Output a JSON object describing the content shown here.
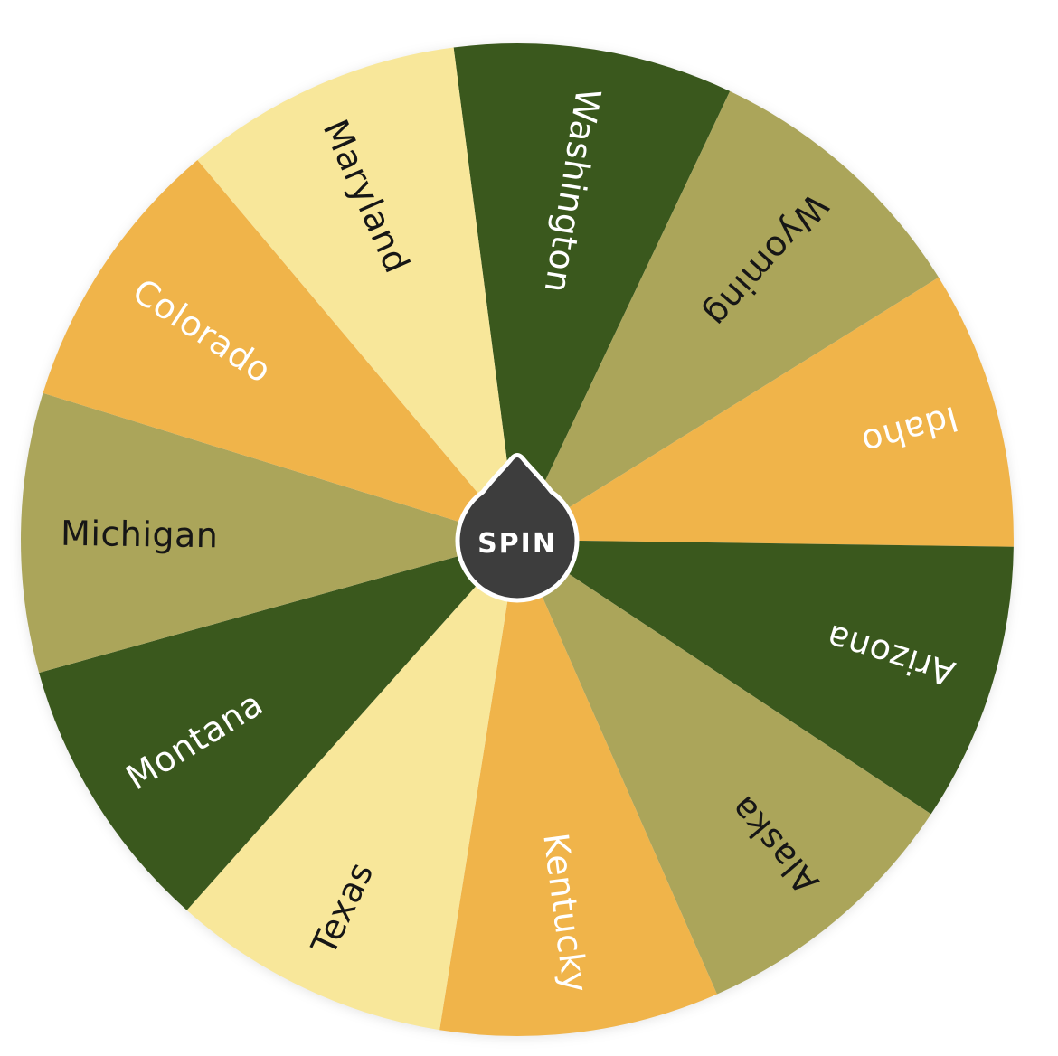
{
  "app": {
    "background_color": "#ffffff"
  },
  "wheel": {
    "rotation_offset_deg": 9,
    "entries": [
      {
        "label": "Washington",
        "color": "#3A581D",
        "text_color": "#FFFFFF",
        "flipped": false
      },
      {
        "label": "Wyoming",
        "color": "#ABA55A",
        "text_color": "#161616",
        "flipped": false
      },
      {
        "label": "Idaho",
        "color": "#F0B44A",
        "text_color": "#FFFFFF",
        "flipped": false
      },
      {
        "label": "Arizona",
        "color": "#3A581D",
        "text_color": "#FFFFFF",
        "flipped": false
      },
      {
        "label": "Alaska",
        "color": "#ABA55A",
        "text_color": "#161616",
        "flipped": false
      },
      {
        "label": "Kentucky",
        "color": "#F0B44A",
        "text_color": "#FFFFFF",
        "flipped": true
      },
      {
        "label": "Texas",
        "color": "#F8E79A",
        "text_color": "#161616",
        "flipped": false
      },
      {
        "label": "Montana",
        "color": "#3A581D",
        "text_color": "#FFFFFF",
        "flipped": false
      },
      {
        "label": "Michigan",
        "color": "#ABA55A",
        "text_color": "#161616",
        "flipped": false
      },
      {
        "label": "Colorado",
        "color": "#F0B44A",
        "text_color": "#FFFFFF",
        "flipped": false
      },
      {
        "label": "Maryland",
        "color": "#F8E79A",
        "text_color": "#161616",
        "flipped": false
      }
    ],
    "center": {
      "label": "SPIN",
      "color": "#3D3D3D",
      "ring_color": "#FFFFFF",
      "text_color": "#FFFFFF"
    }
  }
}
